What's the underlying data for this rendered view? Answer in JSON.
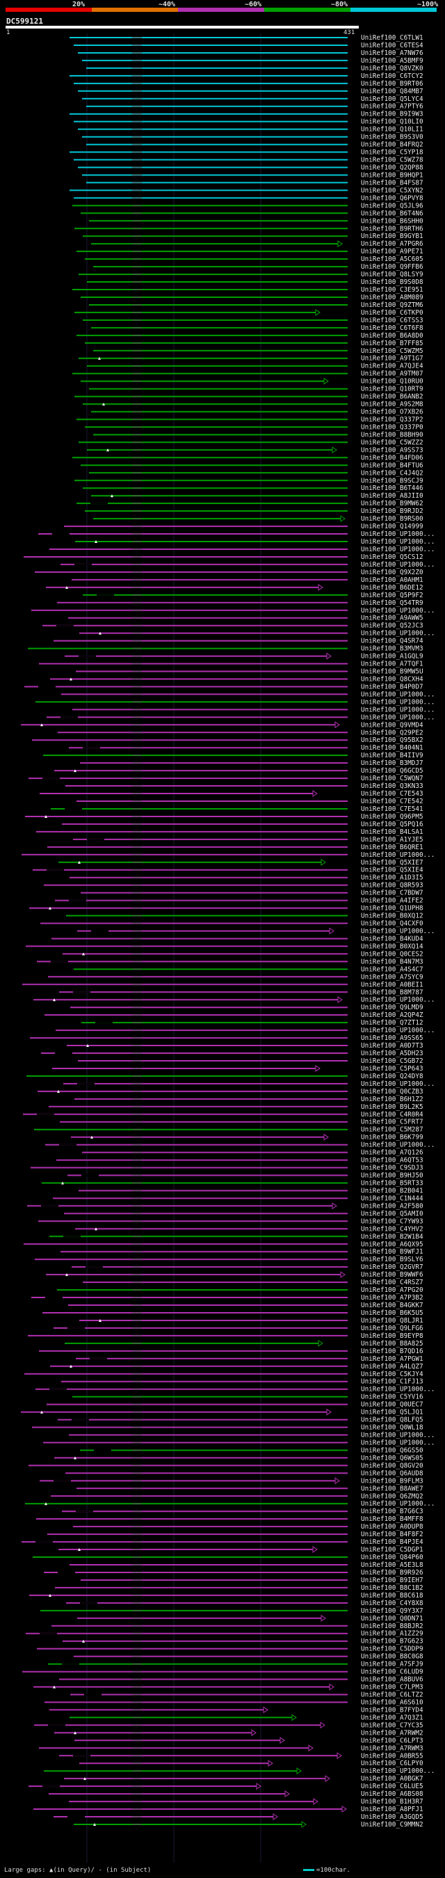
{
  "header": {
    "legend": [
      {
        "label": "20%",
        "color": "#e60000"
      },
      {
        "label": "~40%",
        "color": "#e07000"
      },
      {
        "label": "~60%",
        "color": "#b030b0"
      },
      {
        "label": "~80%",
        "color": "#00a000"
      },
      {
        "label": "~100%",
        "color": "#00c8d8"
      }
    ],
    "cluster_id": "DC599121",
    "scale_start": "1",
    "scale_end": "431"
  },
  "footer": {
    "gap_legend": "Large gaps: ▲(in Query)/ - (in Subject)",
    "scale_legend": "=100char."
  },
  "colors": {
    "cyan": "#00c8d8",
    "green": "#00a000",
    "magenta": "#b030b0",
    "orange": "#e07000",
    "gray": "#555555"
  },
  "chart_data": {
    "type": "alignment-coverage",
    "query_length": 431,
    "ids": [
      "UniRef100_C6TLW1",
      "UniRef100_C6TES4",
      "UniRef100_A7NW76",
      "UniRef100_A5BMF9",
      "UniRef100_Q8VZK0",
      "UniRef100_C6TCY2",
      "UniRef100_B9RT06",
      "UniRef100_Q84MB7",
      "UniRef100_Q5LYC4",
      "UniRef100_A7PTY6",
      "UniRef100_B9I9W3",
      "UniRef100_Q10LI0",
      "UniRef100_Q10LI1",
      "UniRef100_B9S3V0",
      "UniRef100_B4FRQ2",
      "UniRef100_C5YP18",
      "UniRef100_C5WZ78",
      "UniRef100_Q2QP88",
      "UniRef100_B9HQP1",
      "UniRef100_B4FS87",
      "UniRef100_C5XYN2",
      "UniRef100_Q6PVY8",
      "UniRef100_Q5JL96",
      "UniRef100_B6T4N6",
      "UniRef100_B6SHH0",
      "UniRef100_B9RTH6",
      "UniRef100_B9GYB1",
      "UniRef100_A7PGR6",
      "UniRef100_A9PE71",
      "UniRef100_A5C605",
      "UniRef100_Q9FFB6",
      "UniRef100_Q8LSY9",
      "UniRef100_B9S0D8",
      "UniRef100_C3E951",
      "UniRef100_A8M089",
      "UniRef100_Q9ZTM6",
      "UniRef100_C6TKP0",
      "UniRef100_C6TSS3",
      "UniRef100_C6T6F8",
      "UniRef100_B6A8D0",
      "UniRef100_B7FF85",
      "UniRef100_C5WZM5",
      "UniRef100_A9T1G7",
      "UniRef100_A7QJE4",
      "UniRef100_A9TM07",
      "UniRef100_Q10RU0",
      "UniRef100_Q10RT9",
      "UniRef100_B6ANB2",
      "UniRef100_A9S2M8",
      "UniRef100_O7XB26",
      "UniRef100_Q337P2",
      "UniRef100_Q337P0",
      "UniRef100_B8BH90",
      "UniRef100_C5WZZ2",
      "UniRef100_A9SS73",
      "UniRef100_B4FD06",
      "UniRef100_B4FTU6",
      "UniRef100_C4J4Q2",
      "UniRef100_B9SCJ9",
      "UniRef100_B6T446",
      "UniRef100_A8JII0",
      "UniRef100_B9MW62",
      "UniRef100_B9RJD2",
      "UniRef100_B9RS00",
      "UniRef100_Q14999",
      "UniRef100_UP1000...",
      "UniRef100_UP1000...",
      "UniRef100_UP1000...",
      "UniRef100_Q5CS12",
      "UniRef100_UP1000...",
      "UniRef100_Q9X2Z0",
      "UniRef100_A0AHM1",
      "UniRef100_B6DE12",
      "UniRef100_Q5P9F2",
      "UniRef100_Q54TR9",
      "UniRef100_UP1000...",
      "UniRef100_A9AWW5",
      "UniRef100_Q52JC3",
      "UniRef100_UP1000...",
      "UniRef100_Q4SR74",
      "UniRef100_B3MVM3",
      "UniRef100_A1GQL9",
      "UniRef100_A7TQF1",
      "UniRef100_B9MW5U",
      "UniRef100_Q8CXH4",
      "UniRef100_B4P0D7",
      "UniRef100_UP1000...",
      "UniRef100_UP1000...",
      "UniRef100_UP1000...",
      "UniRef100_UP1000...",
      "UniRef100_Q9VMD4",
      "UniRef100_Q29PE2",
      "UniRef100_Q95BX2",
      "UniRef100_B404N1",
      "UniRef100_B4IIV9",
      "UniRef100_B3MDJ7",
      "UniRef100_Q6GCD5",
      "UniRef100_C5WQN7",
      "UniRef100_Q3KN33",
      "UniRef100_C7E543",
      "UniRef100_C7E542",
      "UniRef100_C7E541",
      "UniRef100_Q96PM5",
      "UniRef100_Q5PQ16",
      "UniRef100_B4LSA1",
      "UniRef100_A1YJE5",
      "UniRef100_B6QRE1",
      "UniRef100_UP1000...",
      "UniRef100_Q5XIE7",
      "UniRef100_Q5XIE4",
      "UniRef100_A1D3I5",
      "UniRef100_Q8R593",
      "UniRef100_C7BDW7",
      "UniRef100_A4IFE2",
      "UniRef100_Q1UPH8",
      "UniRef100_B0XQ12",
      "UniRef100_Q4CXF0",
      "UniRef100_UP1000...",
      "UniRef100_B4KUD4",
      "UniRef100_B0XQ14",
      "UniRef100_Q0CES2",
      "UniRef100_B4N7M3",
      "UniRef100_A4S4C7",
      "UniRef100_A7SYC9",
      "UniRef100_A0BEI1",
      "UniRef100_B8M787",
      "UniRef100_UP1000...",
      "UniRef100_Q9LMD9",
      "UniRef100_A2QP4Z",
      "UniRef100_Q7ZT12",
      "UniRef100_UP1000...",
      "UniRef100_A9SS65",
      "UniRef100_A0D7T3",
      "UniRef100_A5DH23",
      "UniRef100_C5GB72",
      "UniRef100_C5P643",
      "UniRef100_Q24DY8",
      "UniRef100_UP1000...",
      "UniRef100_Q0CZB3",
      "UniRef100_B6H1Z2",
      "UniRef100_B9L2K5",
      "UniRef100_C4R0R4",
      "UniRef100_C5FRT7",
      "UniRef100_C5M287",
      "UniRef100_B6K799",
      "UniRef100_UP1000...",
      "UniRef100_A7Q126",
      "UniRef100_A6QT53",
      "UniRef100_C9SDJ3",
      "UniRef100_B9HJ50",
      "UniRef100_B5RT33",
      "UniRef100_B2B041",
      "UniRef100_C1N444",
      "UniRef100_A2F580",
      "UniRef100_Q5AMI0",
      "UniRef100_C7YW93",
      "UniRef100_C4YHV2",
      "UniRef100_B2W1B4",
      "UniRef100_A6QX95",
      "UniRef100_B9WFJ1",
      "UniRef100_B9SLY6",
      "UniRef100_Q2GVR7",
      "UniRef100_B9WWF6",
      "UniRef100_C4RSZ7",
      "UniRef100_A7PG20",
      "UniRef100_A7P3B2",
      "UniRef100_B4GKK7",
      "UniRef100_B6K5U5",
      "UniRef100_Q8LJR1",
      "UniRef100_Q9LFG6",
      "UniRef100_B9EYP8",
      "UniRef100_B8A825",
      "UniRef100_B7QD16",
      "UniRef100_A7PGW1",
      "UniRef100_A4LQZ7",
      "UniRef100_C5KJY4",
      "UniRef100_C1FJ13",
      "UniRef100_UP1000...",
      "UniRef100_C5YV16",
      "UniRef100_Q0UEC7",
      "UniRef100_Q5LJQ1",
      "UniRef100_Q8LFQ5",
      "UniRef100_Q0WL18",
      "UniRef100_UP1000...",
      "UniRef100_UP1000...",
      "UniRef100_Q6GS50",
      "UniRef100_Q6WS05",
      "UniRef100_Q8GV20",
      "UniRef100_Q6AUD8",
      "UniRef100_B9FLM3",
      "UniRef100_B8AWE7",
      "UniRef100_Q6ZMQ2",
      "UniRef100_UP1000...",
      "UniRef100_B7G6C3",
      "UniRef100_B4MFF8",
      "UniRef100_A0DUP8",
      "UniRef100_B4F8F2",
      "UniRef100_B4PJE4",
      "UniRef100_C5DGP1",
      "UniRef100_Q84P60",
      "UniRef100_A5E3L8",
      "UniRef100_B9R926",
      "UniRef100_B9IEH7",
      "UniRef100_B8C1B2",
      "UniRef100_B8C618",
      "UniRef100_C4Y8X8",
      "UniRef100_Q9Y3X7",
      "UniRef100_Q0DN71",
      "UniRef100_B8BJR2",
      "UniRef100_A1ZZ29",
      "UniRef100_B7G623",
      "UniRef100_C5DDP9",
      "UniRef100_B8C0G8",
      "UniRef100_A7SFJ9",
      "UniRef100_C6LUD9",
      "UniRef100_A8BUV6",
      "UniRef100_C7LPM3",
      "UniRef100_C6LTZ2",
      "UniRef100_A6S610",
      "UniRef100_B7FYD4",
      "UniRef100_A7Q3Z1",
      "UniRef100_C7YC35",
      "UniRef100_A7RWM2",
      "UniRef100_C6LPT3",
      "UniRef100_A7RWM3",
      "UniRef100_A0BR55",
      "UniRef100_C6LPY0",
      "UniRef100_UP1000...",
      "UniRef100_A0BGK7",
      "UniRef100_C6LUE5",
      "UniRef100_A6BS08",
      "UniRef100_B1H3R7",
      "UniRef100_A8PFJ1",
      "UniRef100_A3GQD5",
      "UniRef100_C9MMN2"
    ]
  }
}
